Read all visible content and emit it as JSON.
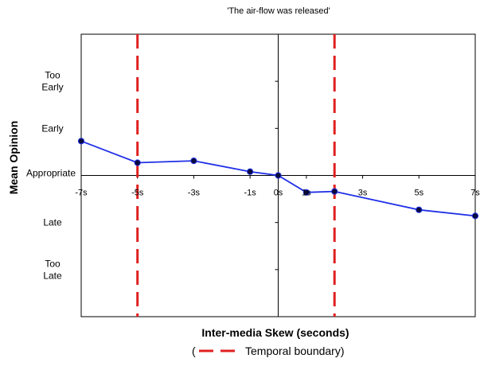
{
  "chart_data": {
    "type": "line",
    "title": "'The air-flow was released'",
    "xlabel": "Inter-media Skew (seconds)",
    "ylabel": "Mean Opinion",
    "x_ticks": [
      "-7s",
      "-5s",
      "-3s",
      "-1s",
      "0s",
      "1s",
      "3s",
      "5s",
      "7s"
    ],
    "x_tick_values": [
      -7,
      -5,
      -3,
      -1,
      0,
      1,
      3,
      5,
      7
    ],
    "xlim": [
      -7,
      7
    ],
    "y_categories": [
      {
        "value": 2,
        "label": "Too Early"
      },
      {
        "value": 1,
        "label": "Early"
      },
      {
        "value": 0,
        "label": "Appropriate"
      },
      {
        "value": -1,
        "label": "Late"
      },
      {
        "value": -2,
        "label": "Too Late"
      }
    ],
    "ylim": [
      -3,
      3
    ],
    "series": [
      {
        "color": "#1f2fe6",
        "points": [
          {
            "x": -7,
            "y": 0.73
          },
          {
            "x": -5,
            "y": 0.27
          },
          {
            "x": -3,
            "y": 0.31
          },
          {
            "x": -1,
            "y": 0.08
          },
          {
            "x": 0,
            "y": 0.0
          },
          {
            "x": 1,
            "y": -0.36
          },
          {
            "x": 2,
            "y": -0.34
          },
          {
            "x": 5,
            "y": -0.73
          },
          {
            "x": 7,
            "y": -0.86
          }
        ]
      }
    ],
    "boundaries": [
      -5,
      2
    ],
    "boundary_color": "#e02020",
    "legend": {
      "prefix": "(",
      "label": "Temporal boundary)",
      "placement": "bottom-center"
    }
  }
}
